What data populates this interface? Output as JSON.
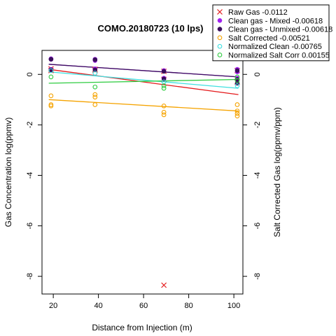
{
  "chart_data": {
    "type": "scatter",
    "title": "COMO.20180723 (10 lps)",
    "xlabel": "Distance from Injection (m)",
    "ylabel": "Gas Concentration log(ppmv)",
    "ylabel_right": "Salt Corrected Gas log(ppmv/ppm)",
    "xlim": [
      15,
      104
    ],
    "ylim": [
      -8.7,
      0.95
    ],
    "x_ticks": [
      20,
      40,
      60,
      80,
      100
    ],
    "y_ticks": [
      0,
      -2,
      -4,
      -6,
      -8
    ],
    "y_ticks_right": [
      0,
      -2,
      -4,
      -6,
      -8
    ],
    "grid": false,
    "legend_position": "top-right",
    "series": [
      {
        "name": "Raw Gas -0.0112",
        "color": "#e41a1c",
        "marker": "x",
        "points": [
          [
            19,
            0.22
          ],
          [
            19,
            0.15
          ],
          [
            38.5,
            0.2
          ],
          [
            38.5,
            0.15
          ],
          [
            69,
            0.12
          ],
          [
            69,
            -0.2
          ],
          [
            69,
            -8.35
          ],
          [
            101.5,
            0.15
          ],
          [
            101.5,
            -0.3
          ]
        ],
        "trend": [
          [
            18,
            0.2
          ],
          [
            102,
            -0.8
          ]
        ]
      },
      {
        "name": "Clean gas - Mixed -0.00618",
        "color": "#a020f0",
        "marker": "filled-circle",
        "points": [
          [
            19,
            0.62
          ],
          [
            19,
            0.6
          ],
          [
            19,
            0.2
          ],
          [
            38.5,
            0.6
          ],
          [
            38.5,
            0.55
          ],
          [
            38.5,
            0.22
          ],
          [
            69,
            0.15
          ],
          [
            69,
            -0.15
          ],
          [
            101.5,
            0.2
          ],
          [
            101.5,
            0.1
          ],
          [
            101.5,
            -0.15
          ]
        ],
        "trend": [
          [
            18,
            0.4
          ],
          [
            102,
            -0.1
          ]
        ]
      },
      {
        "name": "Clean gas - Unmixed -0.00618",
        "color": "#3b0f5c",
        "marker": "filled-circle",
        "points": [
          [
            19,
            0.6
          ],
          [
            19,
            0.18
          ],
          [
            38.5,
            0.58
          ],
          [
            38.5,
            0.18
          ],
          [
            69,
            0.12
          ],
          [
            69,
            -0.18
          ],
          [
            101.5,
            0.15
          ],
          [
            101.5,
            -0.2
          ],
          [
            101.5,
            -0.35
          ]
        ],
        "trend": [
          [
            18,
            0.4
          ],
          [
            102,
            -0.1
          ]
        ]
      },
      {
        "name": "Salt Corrected -0.00521",
        "color": "#f5a300",
        "marker": "open-circle",
        "points": [
          [
            19,
            -0.85
          ],
          [
            19,
            -1.2
          ],
          [
            19,
            -1.25
          ],
          [
            38.5,
            -0.8
          ],
          [
            38.5,
            -0.9
          ],
          [
            38.5,
            -1.2
          ],
          [
            69,
            -1.25
          ],
          [
            69,
            -1.5
          ],
          [
            69,
            -1.6
          ],
          [
            101.5,
            -1.2
          ],
          [
            101.5,
            -1.45
          ],
          [
            101.5,
            -1.55
          ],
          [
            101.5,
            -1.65
          ]
        ],
        "trend": [
          [
            18,
            -1.0
          ],
          [
            102,
            -1.45
          ]
        ]
      },
      {
        "name": "Normalized Clean -0.00765",
        "color": "#3fe0e0",
        "marker": "open-circle",
        "points": [
          [
            19,
            0.15
          ],
          [
            38.5,
            0.05
          ],
          [
            69,
            -0.3
          ],
          [
            101.5,
            -0.45
          ]
        ],
        "trend": [
          [
            18,
            0.1
          ],
          [
            102,
            -0.55
          ]
        ]
      },
      {
        "name": "Normalized Salt Corr 0.00155",
        "color": "#2ecc40",
        "marker": "open-circle",
        "points": [
          [
            19,
            -0.1
          ],
          [
            38.5,
            -0.5
          ],
          [
            69,
            -0.45
          ],
          [
            69,
            -0.55
          ],
          [
            101.5,
            -0.1
          ],
          [
            101.5,
            -0.25
          ]
        ],
        "trend": [
          [
            18,
            -0.35
          ],
          [
            102,
            -0.2
          ]
        ]
      }
    ]
  }
}
